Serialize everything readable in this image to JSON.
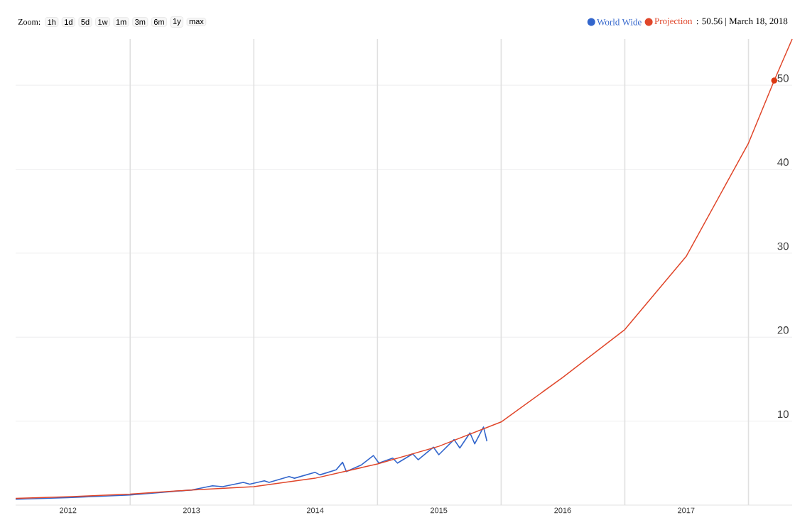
{
  "chart_data": {
    "type": "line",
    "xlim": [
      "2012-01-28",
      "2018-05-10"
    ],
    "ylim": [
      0,
      55.5
    ],
    "xticks": [
      {
        "value": "2012-07-01",
        "label": "2012"
      },
      {
        "value": "2013-07-01",
        "label": "2013"
      },
      {
        "value": "2014-07-01",
        "label": "2014"
      },
      {
        "value": "2015-07-01",
        "label": "2015"
      },
      {
        "value": "2016-07-01",
        "label": "2016"
      },
      {
        "value": "2017-07-01",
        "label": "2017"
      },
      {
        "value": "2013-01-01",
        "label": null
      },
      {
        "value": "2014-01-01",
        "label": null
      },
      {
        "value": "2015-01-01",
        "label": null
      },
      {
        "value": "2016-01-01",
        "label": null
      },
      {
        "value": "2017-01-01",
        "label": null
      },
      {
        "value": "2018-01-01",
        "label": null
      }
    ],
    "yticks": [
      10,
      20,
      30,
      40,
      50
    ],
    "grid": true,
    "legend": "top right",
    "marker": "none",
    "series": [
      {
        "name": "World Wide",
        "color": "#3366cc",
        "x": [
          "2012-01-28",
          "2012-07-01",
          "2013-01-01",
          "2013-04-01",
          "2013-07-01",
          "2013-09-01",
          "2013-10-01",
          "2013-12-01",
          "2013-12-20",
          "2014-02-01",
          "2014-02-15",
          "2014-04-15",
          "2014-05-01",
          "2014-07-01",
          "2014-07-15",
          "2014-09-01",
          "2014-09-20",
          "2014-10-01",
          "2014-11-15",
          "2014-12-20",
          "2015-01-05",
          "2015-02-15",
          "2015-03-01",
          "2015-04-15",
          "2015-05-01",
          "2015-06-15",
          "2015-07-01",
          "2015-08-15",
          "2015-09-01",
          "2015-10-01",
          "2015-10-15",
          "2015-11-10",
          "2015-11-20"
        ],
        "values": [
          0.7,
          0.9,
          1.2,
          1.5,
          1.8,
          2.3,
          2.2,
          2.7,
          2.5,
          2.9,
          2.7,
          3.4,
          3.2,
          3.9,
          3.6,
          4.2,
          5.1,
          4.0,
          4.8,
          5.9,
          5.0,
          5.6,
          5.0,
          6.1,
          5.4,
          6.9,
          6.0,
          7.8,
          6.8,
          8.6,
          7.3,
          9.3,
          7.6
        ]
      },
      {
        "name": "Projection",
        "color": "#e0462a",
        "x": [
          "2012-01-28",
          "2012-07-01",
          "2013-01-01",
          "2013-07-01",
          "2014-01-01",
          "2014-07-01",
          "2015-01-01",
          "2015-07-01",
          "2016-01-01",
          "2016-07-01",
          "2017-01-01",
          "2017-07-01",
          "2018-01-01",
          "2018-03-18",
          "2018-05-10"
        ],
        "values": [
          0.8,
          1.0,
          1.3,
          1.8,
          2.2,
          3.2,
          4.9,
          7.0,
          9.9,
          15.2,
          20.9,
          29.6,
          43.1,
          50.56,
          55.5
        ]
      },
      {
        "type": "scatter",
        "marker": "circle",
        "color": "#dc3912",
        "x": [
          "2018-03-18"
        ],
        "values": [
          50.56
        ]
      }
    ],
    "annotations": [
      "Zoom:",
      "1h",
      "1d",
      "5d",
      "1w",
      "1m",
      "3m",
      "6m",
      "1y",
      "max",
      ": 50.56 | March 18, 2018"
    ]
  }
}
